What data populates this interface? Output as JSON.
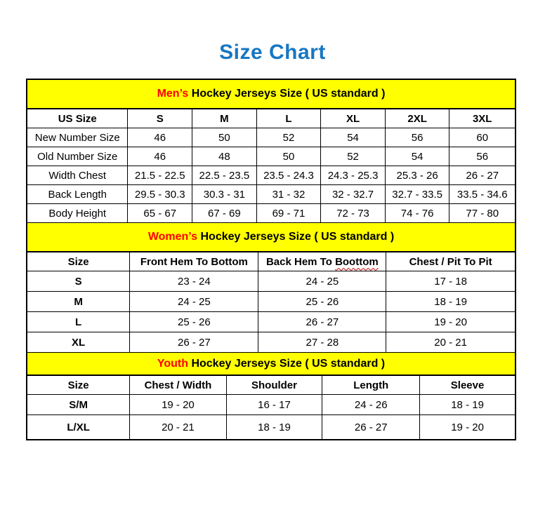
{
  "title": "Size Chart",
  "colors": {
    "title_blue": "#1777C2",
    "banner_yellow": "#FFFF00",
    "accent_red": "#FF0000",
    "border_black": "#000000"
  },
  "chart_data": [
    {
      "type": "table",
      "title": "Men’s Hockey Jerseys Size ( US standard )",
      "title_accent": "Men’s",
      "title_rest": " Hockey Jerseys Size ( US standard )",
      "columns": [
        "US Size",
        "S",
        "M",
        "L",
        "XL",
        "2XL",
        "3XL"
      ],
      "rows": [
        [
          "New Number Size",
          "46",
          "50",
          "52",
          "54",
          "56",
          "60"
        ],
        [
          "Old Number Size",
          "46",
          "48",
          "50",
          "52",
          "54",
          "56"
        ],
        [
          "Width Chest",
          "21.5 - 22.5",
          "22.5 - 23.5",
          "23.5 - 24.3",
          "24.3 - 25.3",
          "25.3 - 26",
          "26 - 27"
        ],
        [
          "Back Length",
          "29.5 - 30.3",
          "30.3 - 31",
          "31 - 32",
          "32 - 32.7",
          "32.7 - 33.5",
          "33.5 - 34.6"
        ],
        [
          "Body Height",
          "65 - 67",
          "67 - 69",
          "69 - 71",
          "72 - 73",
          "74 - 76",
          "77 - 80"
        ]
      ]
    },
    {
      "type": "table",
      "title": "Women’s Hockey Jerseys Size ( US standard )",
      "title_accent": "Women’s",
      "title_rest": " Hockey Jerseys Size ( US standard )",
      "columns": [
        "Size",
        "Front Hem To Bottom",
        "Back Hem To Boottom",
        "Chest / Pit To Pit"
      ],
      "squiggle": {
        "col": 2,
        "prefix": "Back Hem To ",
        "word": "Boottom"
      },
      "rows": [
        [
          "S",
          "23 - 24",
          "24 - 25",
          "17 - 18"
        ],
        [
          "M",
          "24 - 25",
          "25 - 26",
          "18 - 19"
        ],
        [
          "L",
          "25 - 26",
          "26 - 27",
          "19 - 20"
        ],
        [
          "XL",
          "26 - 27",
          "27 - 28",
          "20 - 21"
        ]
      ]
    },
    {
      "type": "table",
      "title": "Youth Hockey Jerseys Size ( US standard )",
      "title_accent": "Youth",
      "title_rest": " Hockey Jerseys Size ( US standard )",
      "columns": [
        "Size",
        "Chest / Width",
        "Shoulder",
        "Length",
        "Sleeve"
      ],
      "rows": [
        [
          "S/M",
          "19 - 20",
          "16 - 17",
          "24 - 26",
          "18 - 19"
        ],
        [
          "L/XL",
          "20 - 21",
          "18 - 19",
          "26 - 27",
          "19 - 20"
        ]
      ]
    }
  ]
}
